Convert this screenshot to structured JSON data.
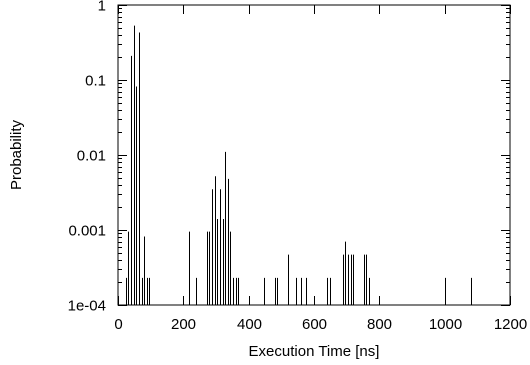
{
  "chart_data": {
    "type": "bar",
    "title": "",
    "xlabel": "Execution Time [ns]",
    "ylabel": "Probability",
    "x_scale": "linear",
    "y_scale": "log",
    "xlim": [
      0,
      1200
    ],
    "ylim": [
      0.0001,
      1
    ],
    "x_ticks": [
      0,
      200,
      400,
      600,
      800,
      1000,
      1200
    ],
    "x_tick_labels": [
      "0",
      "200",
      "400",
      "600",
      "800",
      "1000",
      "1200"
    ],
    "y_ticks": [
      0.0001,
      0.001,
      0.01,
      0.1,
      1
    ],
    "y_tick_labels": [
      "1e-04",
      "0.001",
      "0.01",
      "0.1",
      "1"
    ],
    "grid": false,
    "legend": "none",
    "bar_color": "#000000",
    "x": [
      24,
      32,
      40,
      48,
      56,
      64,
      72,
      80,
      88,
      96,
      216,
      240,
      272,
      280,
      288,
      296,
      304,
      312,
      320,
      328,
      336,
      344,
      352,
      360,
      368,
      448,
      480,
      488,
      520,
      544,
      560,
      576,
      640,
      648,
      688,
      696,
      704,
      712,
      720,
      752,
      760,
      768,
      1000,
      1080
    ],
    "values": [
      0.00023,
      0.00095,
      0.21,
      0.53,
      0.082,
      0.43,
      0.00023,
      0.00082,
      0.00023,
      0.00023,
      0.00095,
      0.00023,
      0.00095,
      0.00095,
      0.0035,
      0.0052,
      0.0014,
      0.0035,
      0.0014,
      0.011,
      0.0048,
      0.00095,
      0.00023,
      0.00023,
      0.00023,
      0.00023,
      0.00023,
      0.00023,
      0.00047,
      0.00023,
      0.00023,
      0.00023,
      0.00023,
      0.00023,
      0.00047,
      0.0007,
      0.00047,
      0.00047,
      0.00047,
      0.00047,
      0.00047,
      0.00023,
      0.00023,
      0.00023
    ]
  }
}
